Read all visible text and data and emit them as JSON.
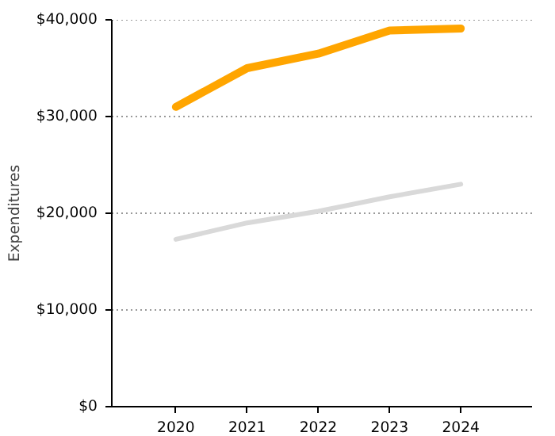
{
  "chart_data": {
    "type": "line",
    "ylabel": "Expenditures",
    "x": [
      2020,
      2021,
      2022,
      2023,
      2024
    ],
    "series": [
      {
        "color": "#ffa500",
        "values": [
          31000,
          35000,
          36500,
          38900,
          39100
        ]
      },
      {
        "color": "#d9d9d9",
        "values": [
          17300,
          19000,
          20200,
          21700,
          23000
        ]
      }
    ],
    "xlim": [
      2019.1,
      2025
    ],
    "xticks": [
      2020,
      2021,
      2022,
      2023,
      2024
    ],
    "ylim": [
      0,
      40000
    ],
    "yticks": [
      {
        "value": 0,
        "label": "$0"
      },
      {
        "value": 10000,
        "label": "$10,000"
      },
      {
        "value": 20000,
        "label": "$20,000"
      },
      {
        "value": 30000,
        "label": "$30,000"
      },
      {
        "value": 40000,
        "label": "$40,000"
      }
    ],
    "grid": "y",
    "marker": "none",
    "line_style": "solid"
  }
}
